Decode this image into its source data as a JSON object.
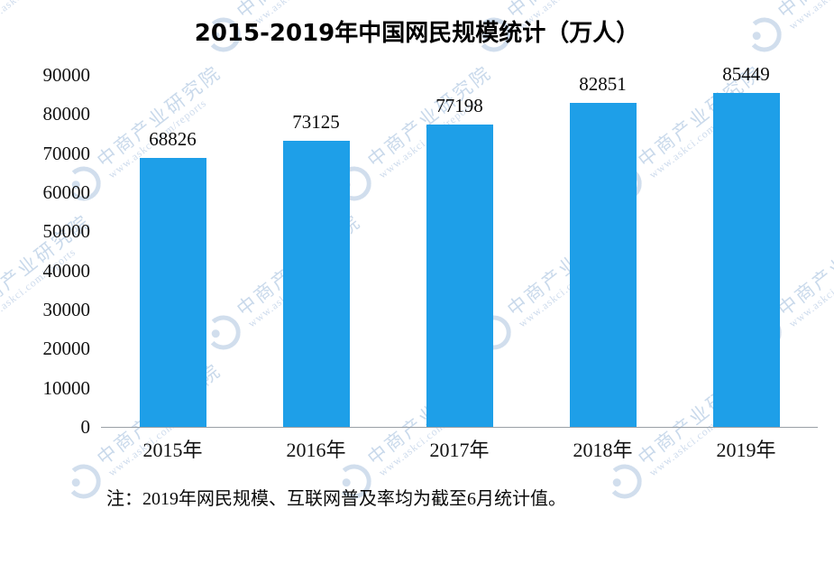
{
  "title": "2015-2019年中国网民规模统计（万人）",
  "note": "注：2019年网民规模、互联网普及率均为截至6月统计值。",
  "watermark": {
    "brand": "中商产业研究院",
    "url": "www.askci.com/reports"
  },
  "colors": {
    "bar": "#1E9FE8",
    "watermark": "#c7d8ea"
  },
  "chart_data": {
    "type": "bar",
    "categories": [
      "2015年",
      "2016年",
      "2017年",
      "2018年",
      "2019年"
    ],
    "values": [
      68826,
      73125,
      77198,
      82851,
      85449
    ],
    "title": "2015-2019年中国网民规模统计（万人）",
    "xlabel": "",
    "ylabel": "",
    "ylim": [
      0,
      90000
    ],
    "yticks": [
      0,
      10000,
      20000,
      30000,
      40000,
      50000,
      60000,
      70000,
      80000,
      90000
    ],
    "grid": false,
    "legend": "none",
    "value_labels": true
  }
}
